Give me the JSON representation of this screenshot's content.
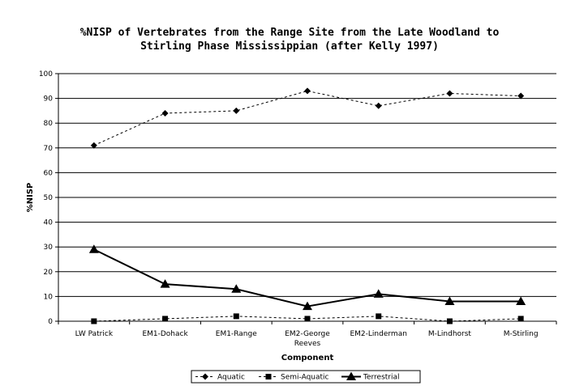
{
  "chart_data": {
    "type": "line",
    "title_lines": [
      "%NISP of Vertebrates from the Range Site from the Late Woodland to",
      "Stirling Phase Mississippian (after Kelly 1997)"
    ],
    "xlabel": "Component",
    "ylabel": "%NISP",
    "ylim": [
      0,
      100
    ],
    "y_ticks": [
      0,
      10,
      20,
      30,
      40,
      50,
      60,
      70,
      80,
      90,
      100
    ],
    "grid": true,
    "legend_position": "bottom",
    "categories": [
      [
        "LW Patrick"
      ],
      [
        "EM1-Dohack"
      ],
      [
        "EM1-Range"
      ],
      [
        "EM2-George",
        "Reeves"
      ],
      [
        "EM2-Linderman"
      ],
      [
        "M-Lindhorst"
      ],
      [
        "M-Stirling"
      ]
    ],
    "series": [
      {
        "name": "Aquatic",
        "marker": "diamond",
        "line": "dashed",
        "values": [
          71,
          84,
          85,
          93,
          87,
          92,
          91
        ]
      },
      {
        "name": "Semi-Aquatic",
        "marker": "square",
        "line": "dashed",
        "values": [
          0,
          1,
          2,
          1,
          2,
          0,
          1
        ]
      },
      {
        "name": "Terrestrial",
        "marker": "triangle",
        "line": "solid",
        "values": [
          29,
          15,
          13,
          6,
          11,
          8,
          8
        ]
      }
    ]
  }
}
